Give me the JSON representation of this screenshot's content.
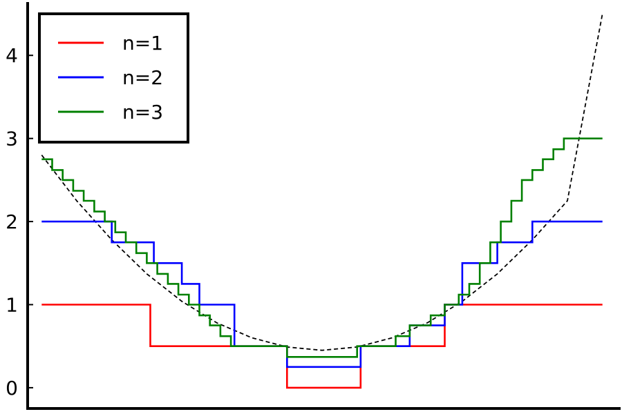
{
  "chart_data": {
    "type": "line",
    "xlim": [
      -4.2,
      4.2
    ],
    "ylim": [
      -0.25,
      4.6
    ],
    "grid": false,
    "legend_position": "top-left",
    "yticks": [
      {
        "value": 0,
        "label": "0"
      },
      {
        "value": 1,
        "label": "1"
      },
      {
        "value": 2,
        "label": "2"
      },
      {
        "value": 3,
        "label": "3"
      },
      {
        "value": 4,
        "label": "4"
      }
    ],
    "reference_curve": {
      "style": "dashed",
      "color": "#000000",
      "x": [
        -4.0,
        -3.5,
        -3.0,
        -2.5,
        -2.0,
        -1.5,
        -1.0,
        -0.5,
        0.0,
        0.5,
        1.0,
        1.5,
        2.0,
        2.5,
        3.0,
        3.5,
        4.0
      ],
      "y": [
        2.8,
        2.25,
        1.78,
        1.37,
        1.04,
        0.78,
        0.6,
        0.49,
        0.45,
        0.49,
        0.6,
        0.78,
        1.04,
        1.37,
        1.78,
        2.25,
        4.5
      ]
    },
    "series": [
      {
        "name": "n=1",
        "color": "#ff0000",
        "x": [
          -4.0,
          -2.45,
          -2.45,
          -1.25,
          -1.25,
          -0.5,
          -0.5,
          0.55,
          0.55,
          1.75,
          1.75,
          4.0
        ],
        "y": [
          1.0,
          1.0,
          0.5,
          0.5,
          0.5,
          0.5,
          0.0,
          0.0,
          0.5,
          0.5,
          1.0,
          1.0
        ]
      },
      {
        "name": "n=2",
        "color": "#0000ff",
        "x": [
          -4.0,
          -3.0,
          -3.0,
          -2.4,
          -2.4,
          -2.0,
          -2.0,
          -1.75,
          -1.75,
          -1.25,
          -1.25,
          -0.5,
          -0.5,
          0.55,
          0.55,
          1.25,
          1.25,
          1.75,
          1.75,
          2.0,
          2.0,
          2.5,
          2.5,
          3.0,
          3.0,
          4.0
        ],
        "y": [
          2.0,
          2.0,
          1.75,
          1.75,
          1.5,
          1.5,
          1.25,
          1.25,
          1.0,
          1.0,
          0.5,
          0.5,
          0.25,
          0.25,
          0.5,
          0.5,
          0.75,
          0.75,
          1.0,
          1.0,
          1.5,
          1.5,
          1.75,
          1.75,
          2.0,
          2.0
        ]
      },
      {
        "name": "n=3",
        "color": "#008000",
        "x": [
          -4.0,
          -3.85,
          -3.85,
          -3.7,
          -3.7,
          -3.55,
          -3.55,
          -3.4,
          -3.4,
          -3.25,
          -3.25,
          -3.1,
          -3.1,
          -2.95,
          -2.95,
          -2.8,
          -2.8,
          -2.65,
          -2.65,
          -2.5,
          -2.5,
          -2.35,
          -2.35,
          -2.2,
          -2.2,
          -2.05,
          -2.05,
          -1.9,
          -1.9,
          -1.75,
          -1.75,
          -1.6,
          -1.6,
          -1.45,
          -1.45,
          -1.3,
          -1.3,
          -0.5,
          -0.5,
          0.5,
          0.5,
          1.05,
          1.05,
          1.25,
          1.25,
          1.55,
          1.55,
          1.75,
          1.75,
          1.95,
          1.95,
          2.1,
          2.1,
          2.25,
          2.25,
          2.4,
          2.4,
          2.55,
          2.55,
          2.7,
          2.7,
          2.85,
          2.85,
          3.0,
          3.0,
          3.15,
          3.15,
          3.3,
          3.3,
          3.45,
          3.45,
          3.6,
          3.6,
          3.75,
          3.75,
          4.0
        ],
        "y": [
          2.75,
          2.75,
          2.62,
          2.62,
          2.5,
          2.5,
          2.37,
          2.37,
          2.25,
          2.25,
          2.12,
          2.12,
          2.0,
          2.0,
          1.87,
          1.87,
          1.75,
          1.75,
          1.62,
          1.62,
          1.5,
          1.5,
          1.37,
          1.37,
          1.25,
          1.25,
          1.12,
          1.12,
          1.0,
          1.0,
          0.87,
          0.87,
          0.75,
          0.75,
          0.62,
          0.62,
          0.5,
          0.5,
          0.37,
          0.37,
          0.5,
          0.5,
          0.62,
          0.62,
          0.75,
          0.75,
          0.87,
          0.87,
          1.0,
          1.0,
          1.12,
          1.12,
          1.25,
          1.25,
          1.5,
          1.5,
          1.75,
          1.75,
          2.0,
          2.0,
          2.25,
          2.25,
          2.5,
          2.5,
          2.62,
          2.62,
          2.75,
          2.75,
          2.87,
          2.87,
          3.0,
          3.0,
          3.0,
          3.0,
          3.0,
          3.0
        ]
      }
    ]
  }
}
